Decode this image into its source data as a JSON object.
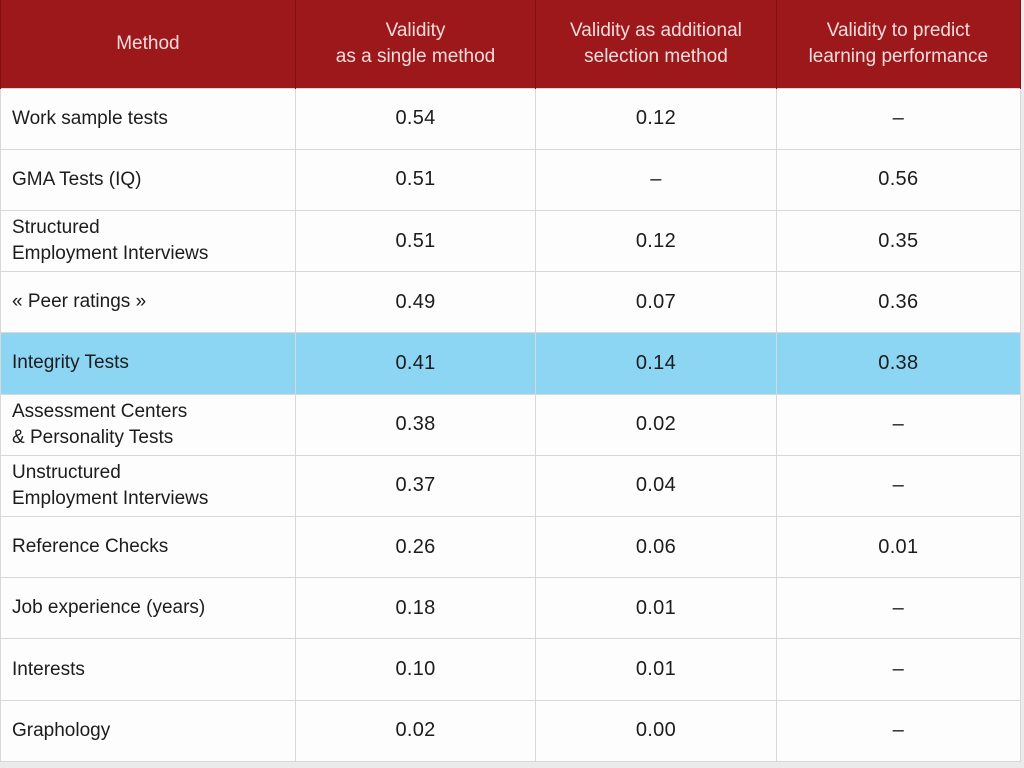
{
  "colors": {
    "header_bg": "#9D181B",
    "header_border": "#801215",
    "header_text": "#F5DCDC",
    "highlight_bg": "#8CD6F4",
    "grid_border": "#D8D8D8",
    "body_text": "#1C1C1C",
    "page_bg": "#EBEBEB"
  },
  "chart_data": {
    "type": "table",
    "columns": [
      "Method",
      "Validity\nas a single method",
      "Validity as additional\nselection method",
      "Validity to predict\nlearning performance"
    ],
    "rows": [
      {
        "label": "Work sample tests",
        "values": [
          "0.54",
          "0.12",
          "–"
        ],
        "highlighted": false
      },
      {
        "label": "GMA Tests (IQ)",
        "values": [
          "0.51",
          "–",
          "0.56"
        ],
        "highlighted": false
      },
      {
        "label": "Structured\nEmployment Interviews",
        "values": [
          "0.51",
          "0.12",
          "0.35"
        ],
        "highlighted": false
      },
      {
        "label": "« Peer ratings »",
        "values": [
          "0.49",
          "0.07",
          "0.36"
        ],
        "highlighted": false
      },
      {
        "label": "Integrity Tests",
        "values": [
          "0.41",
          "0.14",
          "0.38"
        ],
        "highlighted": true
      },
      {
        "label": "Assessment Centers\n& Personality Tests",
        "values": [
          "0.38",
          "0.02",
          "–"
        ],
        "highlighted": false
      },
      {
        "label": "Unstructured\nEmployment Interviews",
        "values": [
          "0.37",
          "0.04",
          "–"
        ],
        "highlighted": false
      },
      {
        "label": "Reference Checks",
        "values": [
          "0.26",
          "0.06",
          "0.01"
        ],
        "highlighted": false
      },
      {
        "label": "Job experience (years)",
        "values": [
          "0.18",
          "0.01",
          "–"
        ],
        "highlighted": false
      },
      {
        "label": "Interests",
        "values": [
          "0.10",
          "0.01",
          "–"
        ],
        "highlighted": false
      },
      {
        "label": "Graphology",
        "values": [
          "0.02",
          "0.00",
          "–"
        ],
        "highlighted": false
      }
    ],
    "title": "",
    "legend": "none",
    "grid": "on",
    "highlighted_row_label": "Integrity Tests"
  }
}
